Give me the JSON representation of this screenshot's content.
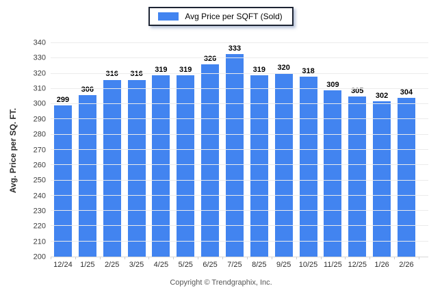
{
  "legend": {
    "label": "Avg Price per SQFT (Sold)"
  },
  "footer": {
    "copyright": "Copyright © Trendgraphix, Inc."
  },
  "colors": {
    "bar": "#4284f0",
    "grid": "#ebebeb",
    "axis": "#d6d6d6"
  },
  "chart_data": {
    "type": "bar",
    "categories": [
      "12/24",
      "1/25",
      "2/25",
      "3/25",
      "4/25",
      "5/25",
      "6/25",
      "7/25",
      "8/25",
      "9/25",
      "10/25",
      "11/25",
      "12/25",
      "1/26",
      "2/26"
    ],
    "values": [
      299,
      306,
      316,
      316,
      319,
      319,
      326,
      333,
      319,
      320,
      318,
      309,
      305,
      302,
      304
    ],
    "title": "",
    "xlabel": "",
    "ylabel": "Avg. Price per SQ. FT.",
    "ylim": [
      200,
      340
    ],
    "ytick_step": 10,
    "grid": true,
    "bar_labels": true,
    "legend_entries": [
      "Avg Price per SQFT (Sold)"
    ],
    "legend_position": "top"
  }
}
